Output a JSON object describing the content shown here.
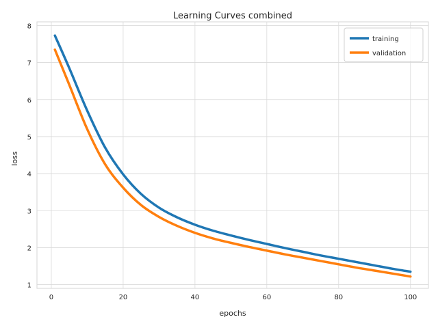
{
  "chart_data": {
    "type": "line",
    "title": "Learning Curves combined",
    "xlabel": "epochs",
    "ylabel": "loss",
    "xlim": [
      -4,
      105
    ],
    "ylim": [
      0.9,
      8.1
    ],
    "xticks": [
      0,
      20,
      40,
      60,
      80,
      100
    ],
    "yticks": [
      1,
      2,
      3,
      4,
      5,
      6,
      7,
      8
    ],
    "grid": true,
    "legend_position": "top-right",
    "x": [
      1,
      5,
      10,
      15,
      20,
      25,
      30,
      35,
      40,
      45,
      50,
      55,
      60,
      65,
      70,
      75,
      80,
      85,
      90,
      95,
      100
    ],
    "series": [
      {
        "name": "training",
        "color": "#1f77b4",
        "values": [
          7.73,
          6.85,
          5.7,
          4.7,
          3.98,
          3.45,
          3.08,
          2.82,
          2.62,
          2.46,
          2.33,
          2.21,
          2.1,
          1.99,
          1.89,
          1.79,
          1.7,
          1.61,
          1.52,
          1.43,
          1.35
        ]
      },
      {
        "name": "validation",
        "color": "#ff7f0e",
        "values": [
          7.35,
          6.4,
          5.2,
          4.25,
          3.62,
          3.15,
          2.83,
          2.59,
          2.4,
          2.25,
          2.13,
          2.02,
          1.92,
          1.82,
          1.73,
          1.64,
          1.55,
          1.46,
          1.38,
          1.3,
          1.22
        ]
      }
    ]
  }
}
